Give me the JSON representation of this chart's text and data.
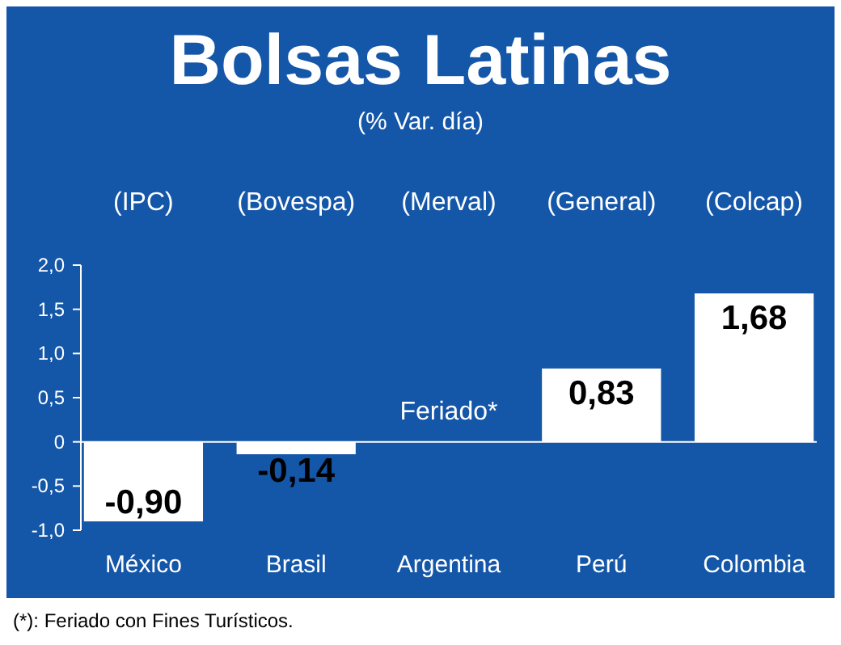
{
  "chart_data": {
    "type": "bar",
    "title": "Bolsas Latinas",
    "subtitle": "(% Var. día)",
    "categories": [
      "México",
      "Brasil",
      "Argentina",
      "Perú",
      "Colombia"
    ],
    "values": [
      -0.9,
      -0.14,
      null,
      0.83,
      1.68
    ],
    "value_labels": [
      "-0,90",
      "-0,14",
      null,
      "0,83",
      "1,68"
    ],
    "color": "#ffffff",
    "ylim": [
      -1,
      2
    ],
    "yticks": [
      {
        "value": -1,
        "label": "-1,0"
      },
      {
        "value": -0.5,
        "label": "-0,5"
      },
      0,
      {
        "value": 0.5,
        "label": "0,5"
      },
      {
        "value": 1,
        "label": "1,0"
      },
      {
        "value": 1.5,
        "label": "1,5"
      },
      {
        "value": 2,
        "label": "2,0"
      }
    ],
    "annotations": [
      "(IPC)",
      "(Bovespa)",
      "(Merval)",
      "(General)",
      "(Colcap)",
      "Feriado*",
      "(*): Feriado con Fines Turísticos."
    ]
  }
}
